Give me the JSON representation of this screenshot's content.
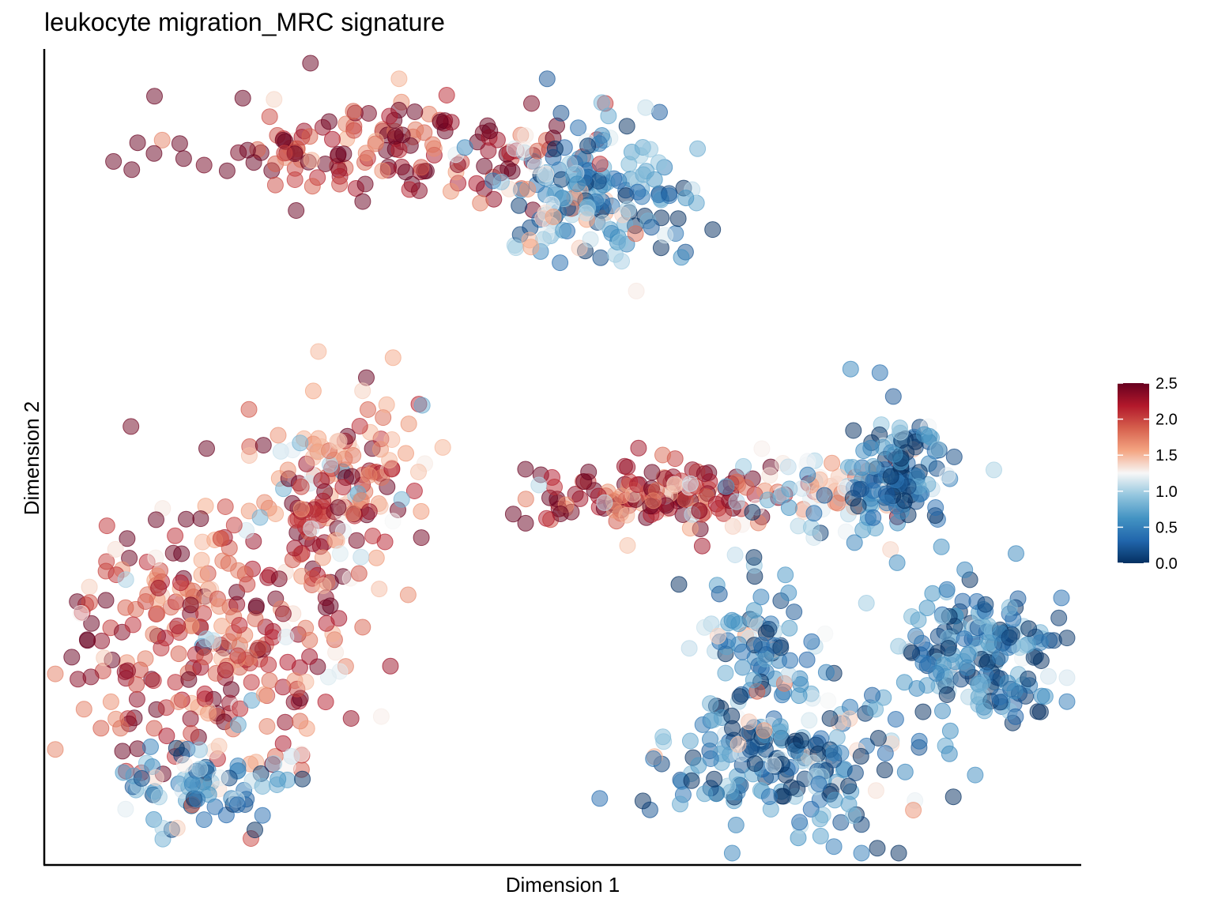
{
  "chart_data": {
    "type": "scatter",
    "title": "leukocyte migration_MRC signature",
    "xlabel": "Dimension 1",
    "ylabel": "Dimension 2",
    "xlim": [
      0,
      100
    ],
    "ylim": [
      0,
      100
    ],
    "x_ticks_shown": false,
    "y_ticks_shown": false,
    "grid": false,
    "point_opacity": 0.5,
    "colorbar": {
      "range": [
        0,
        2.5
      ],
      "ticks": [
        "0.0",
        "0.5",
        "1.0",
        "1.5",
        "2.0",
        "2.5"
      ],
      "tick_values": [
        0,
        0.5,
        1.0,
        1.5,
        2.0,
        2.5
      ],
      "placement": "right",
      "colormap": "RdBu_r",
      "stops": [
        "#053061",
        "#2166ac",
        "#4393c3",
        "#92c5de",
        "#f7f7f7",
        "#f4a582",
        "#d6604d",
        "#b2182b",
        "#67001f"
      ]
    },
    "clusters": [
      {
        "cx": 34,
        "cy": 89,
        "sx": 10,
        "sy": 3.5,
        "value": 2.2,
        "count": 160
      },
      {
        "cx": 54,
        "cy": 84,
        "sx": 5,
        "sy": 5,
        "value": 0.6,
        "count": 150
      },
      {
        "cx": 50,
        "cy": 82,
        "sx": 2.5,
        "sy": 4,
        "value": 1.3,
        "count": 40
      },
      {
        "cx": 16,
        "cy": 28,
        "sx": 7,
        "sy": 9,
        "value": 2.0,
        "count": 280
      },
      {
        "cx": 28,
        "cy": 46,
        "sx": 4,
        "sy": 6,
        "value": 1.8,
        "count": 150
      },
      {
        "cx": 14,
        "cy": 9,
        "sx": 4,
        "sy": 3,
        "value": 0.7,
        "count": 80
      },
      {
        "cx": 60,
        "cy": 45,
        "sx": 7,
        "sy": 2,
        "value": 2.2,
        "count": 150
      },
      {
        "cx": 77,
        "cy": 45,
        "sx": 5,
        "sy": 2.5,
        "value": 1.1,
        "count": 70
      },
      {
        "cx": 83,
        "cy": 48,
        "sx": 2.5,
        "sy": 5,
        "value": 0.4,
        "count": 120
      },
      {
        "cx": 91,
        "cy": 25,
        "sx": 4,
        "sy": 5,
        "value": 0.4,
        "count": 180
      },
      {
        "cx": 72,
        "cy": 12,
        "sx": 6,
        "sy": 5,
        "value": 0.5,
        "count": 220
      },
      {
        "cx": 69,
        "cy": 28,
        "sx": 3,
        "sy": 4,
        "value": 0.7,
        "count": 70
      }
    ]
  }
}
